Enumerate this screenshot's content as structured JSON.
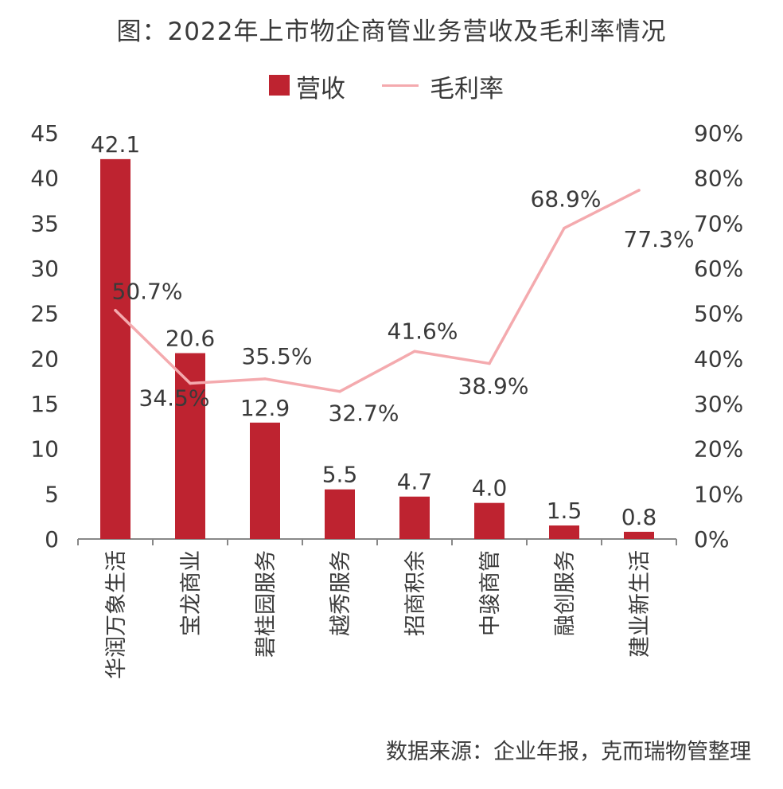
{
  "title": "图：2022年上市物企商管业务营收及毛利率情况",
  "legend": {
    "bar_label": "营收",
    "line_label": "毛利率"
  },
  "source": "数据来源：企业年报，克而瑞物管整理",
  "colors": {
    "bar": "#be2330",
    "line": "#f4aaae",
    "axis": "#888888",
    "text": "#3a3a3a"
  },
  "chart_data": {
    "type": "bar",
    "categories": [
      "华润万象生活",
      "宝龙商业",
      "碧桂园服务",
      "越秀服务",
      "招商积余",
      "中骏商管",
      "融创服务",
      "建业新生活"
    ],
    "series": [
      {
        "name": "营收",
        "kind": "bar",
        "axis": "left",
        "values": [
          42.1,
          20.6,
          12.9,
          5.5,
          4.7,
          4.0,
          1.5,
          0.8
        ],
        "labels": [
          "42.1",
          "20.6",
          "12.9",
          "5.5",
          "4.7",
          "4.0",
          "1.5",
          "0.8"
        ]
      },
      {
        "name": "毛利率",
        "kind": "line",
        "axis": "right",
        "values": [
          50.7,
          34.5,
          35.5,
          32.7,
          41.6,
          38.9,
          68.9,
          77.3
        ],
        "labels": [
          "50.7%",
          "34.5%",
          "35.5%",
          "32.7%",
          "41.6%",
          "38.9%",
          "68.9%",
          "77.3%"
        ]
      }
    ],
    "y_left": {
      "min": 0,
      "max": 45,
      "ticks": [
        "0",
        "5",
        "10",
        "15",
        "20",
        "25",
        "30",
        "35",
        "40",
        "45"
      ]
    },
    "y_right": {
      "min": 0,
      "max": 90,
      "ticks": [
        "0%",
        "10%",
        "20%",
        "30%",
        "40%",
        "50%",
        "60%",
        "70%",
        "80%",
        "90%"
      ]
    },
    "grid": false,
    "legend_position": "top-center"
  }
}
